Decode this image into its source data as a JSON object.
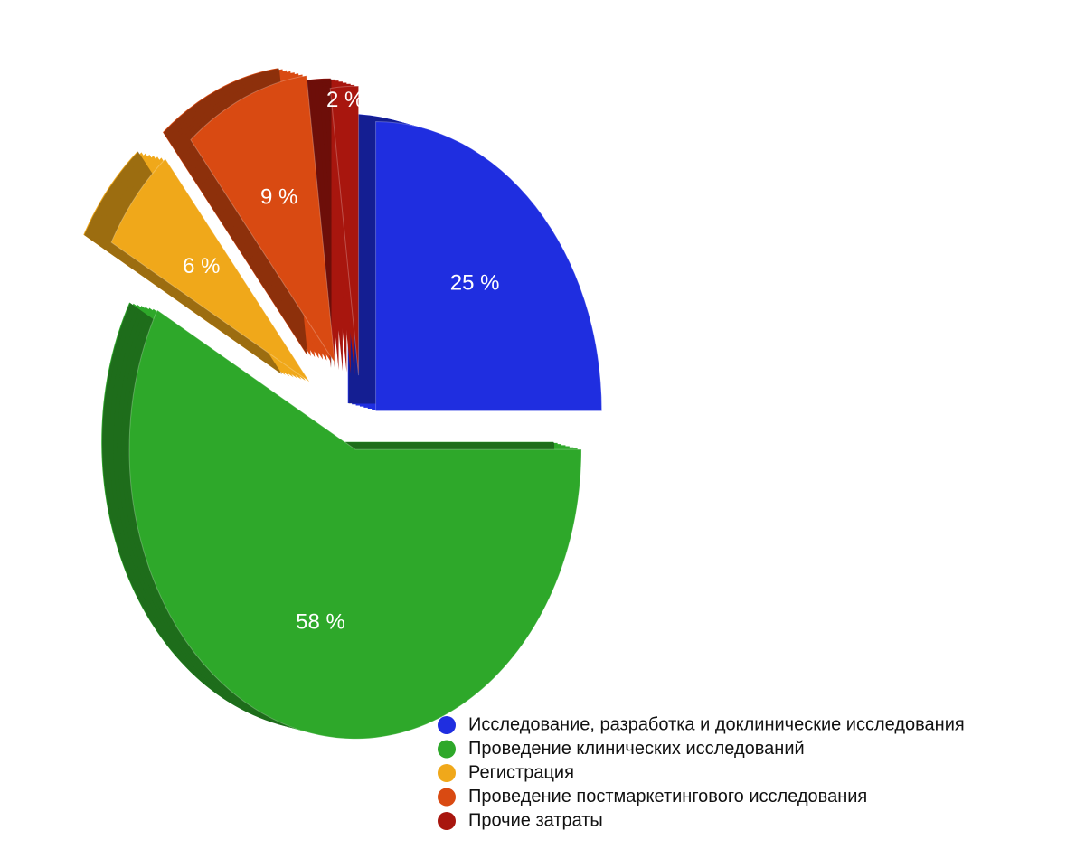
{
  "chart_data": {
    "type": "pie",
    "categories": [
      "Исследование, разработка и доклинические исследования",
      "Проведение клинических исследований",
      "Регистрация",
      "Проведение постмаркетингового исследования",
      "Прочие затраты"
    ],
    "values": [
      25,
      58,
      6,
      9,
      2
    ],
    "value_labels": [
      "25 %",
      "58 %",
      "6 %",
      "9 %",
      "2 %"
    ],
    "colors": [
      "#1f2ee0",
      "#2ea82a",
      "#f0a81a",
      "#d94a12",
      "#a8160e"
    ]
  }
}
